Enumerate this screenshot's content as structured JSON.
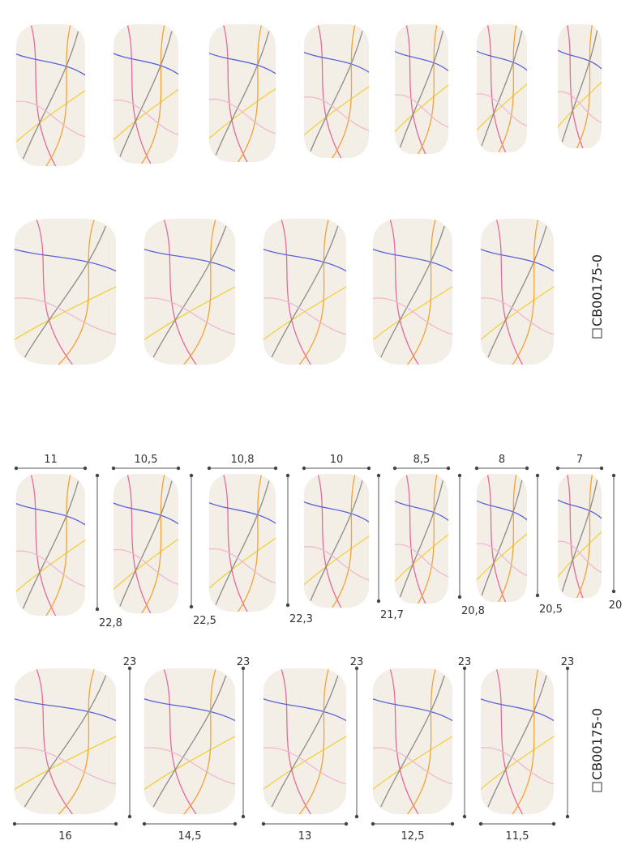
{
  "product_code": "CB00175-0",
  "size_chart": {
    "small_set": [
      {
        "width": "11",
        "height": "22,8"
      },
      {
        "width": "10,5",
        "height": "22,5"
      },
      {
        "width": "10,8",
        "height": "22,3"
      },
      {
        "width": "10",
        "height": "21,7"
      },
      {
        "width": "8,5",
        "height": "20,8"
      },
      {
        "width": "8",
        "height": "20,5"
      },
      {
        "width": "7",
        "height": "20"
      }
    ],
    "large_set": [
      {
        "width": "16",
        "height": "23"
      },
      {
        "width": "14,5",
        "height": "23"
      },
      {
        "width": "13",
        "height": "23"
      },
      {
        "width": "12,5",
        "height": "23"
      },
      {
        "width": "11,5",
        "height": "23"
      }
    ]
  }
}
